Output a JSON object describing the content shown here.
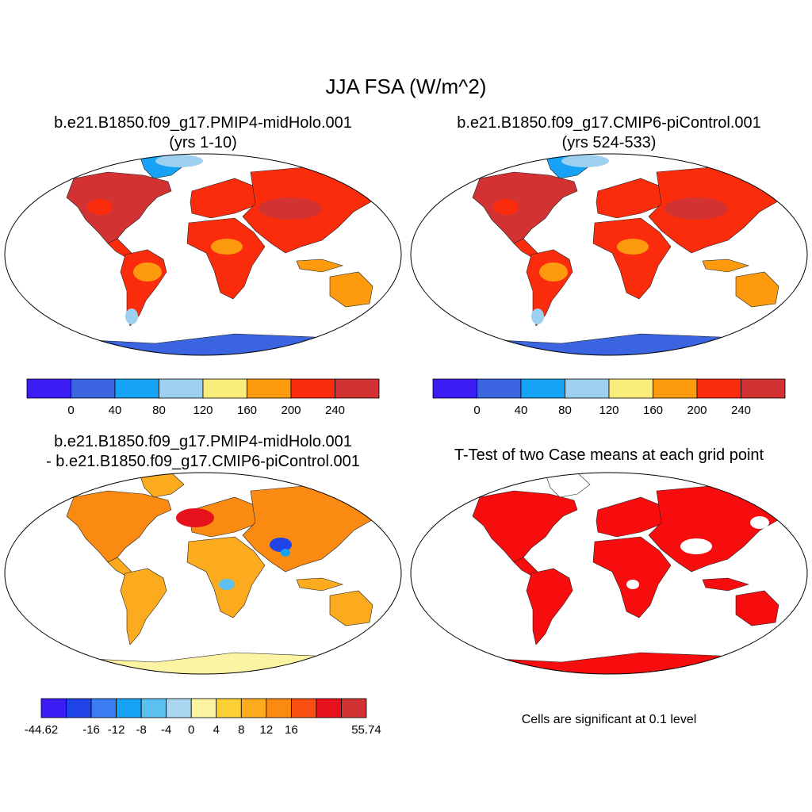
{
  "figure": {
    "title": "JJA FSA (W/m^2)"
  },
  "panels": [
    {
      "id": "midholo",
      "title_line1": "b.e21.B1850.f09_g17.PMIP4-midHolo.001",
      "title_line2": "(yrs 1-10)"
    },
    {
      "id": "picontrol",
      "title_line1": "b.e21.B1850.f09_g17.CMIP6-piControl.001",
      "title_line2": "(yrs 524-533)"
    },
    {
      "id": "difference",
      "title_line1": "b.e21.B1850.f09_g17.PMIP4-midHolo.001",
      "title_line2": "- b.e21.B1850.f09_g17.CMIP6-piControl.001"
    },
    {
      "id": "ttest",
      "title_line1": "T-Test of two Case means at each grid point",
      "note": "Cells are significant at 0.1 level"
    }
  ],
  "colorbars": {
    "abs": {
      "colors": [
        "#3b1cf5",
        "#3b64e0",
        "#16a3f5",
        "#9dcfee",
        "#fbed7c",
        "#fd9a0d",
        "#fb2c0c",
        "#d33232"
      ],
      "labels": [
        "0",
        "40",
        "80",
        "120",
        "160",
        "200",
        "240"
      ]
    },
    "diff": {
      "colors": [
        "#3b1cf5",
        "#2144e8",
        "#3a7df0",
        "#16a3f5",
        "#5cc0f0",
        "#a9d6ee",
        "#fdf4a3",
        "#fbcf36",
        "#fcaa1e",
        "#fb8a12",
        "#fb4e12",
        "#e6111a",
        "#d33232"
      ],
      "labels": [
        "-44.62",
        "-16",
        "-12",
        "-8",
        "-4",
        "0",
        "4",
        "8",
        "12",
        "16",
        "55.74"
      ]
    }
  },
  "map_colors": {
    "ocean": "#ffffff",
    "antarctica_abs": "#3b64e0",
    "antarctica_diff": "#fbf08e",
    "significant": "#f70d0d"
  }
}
